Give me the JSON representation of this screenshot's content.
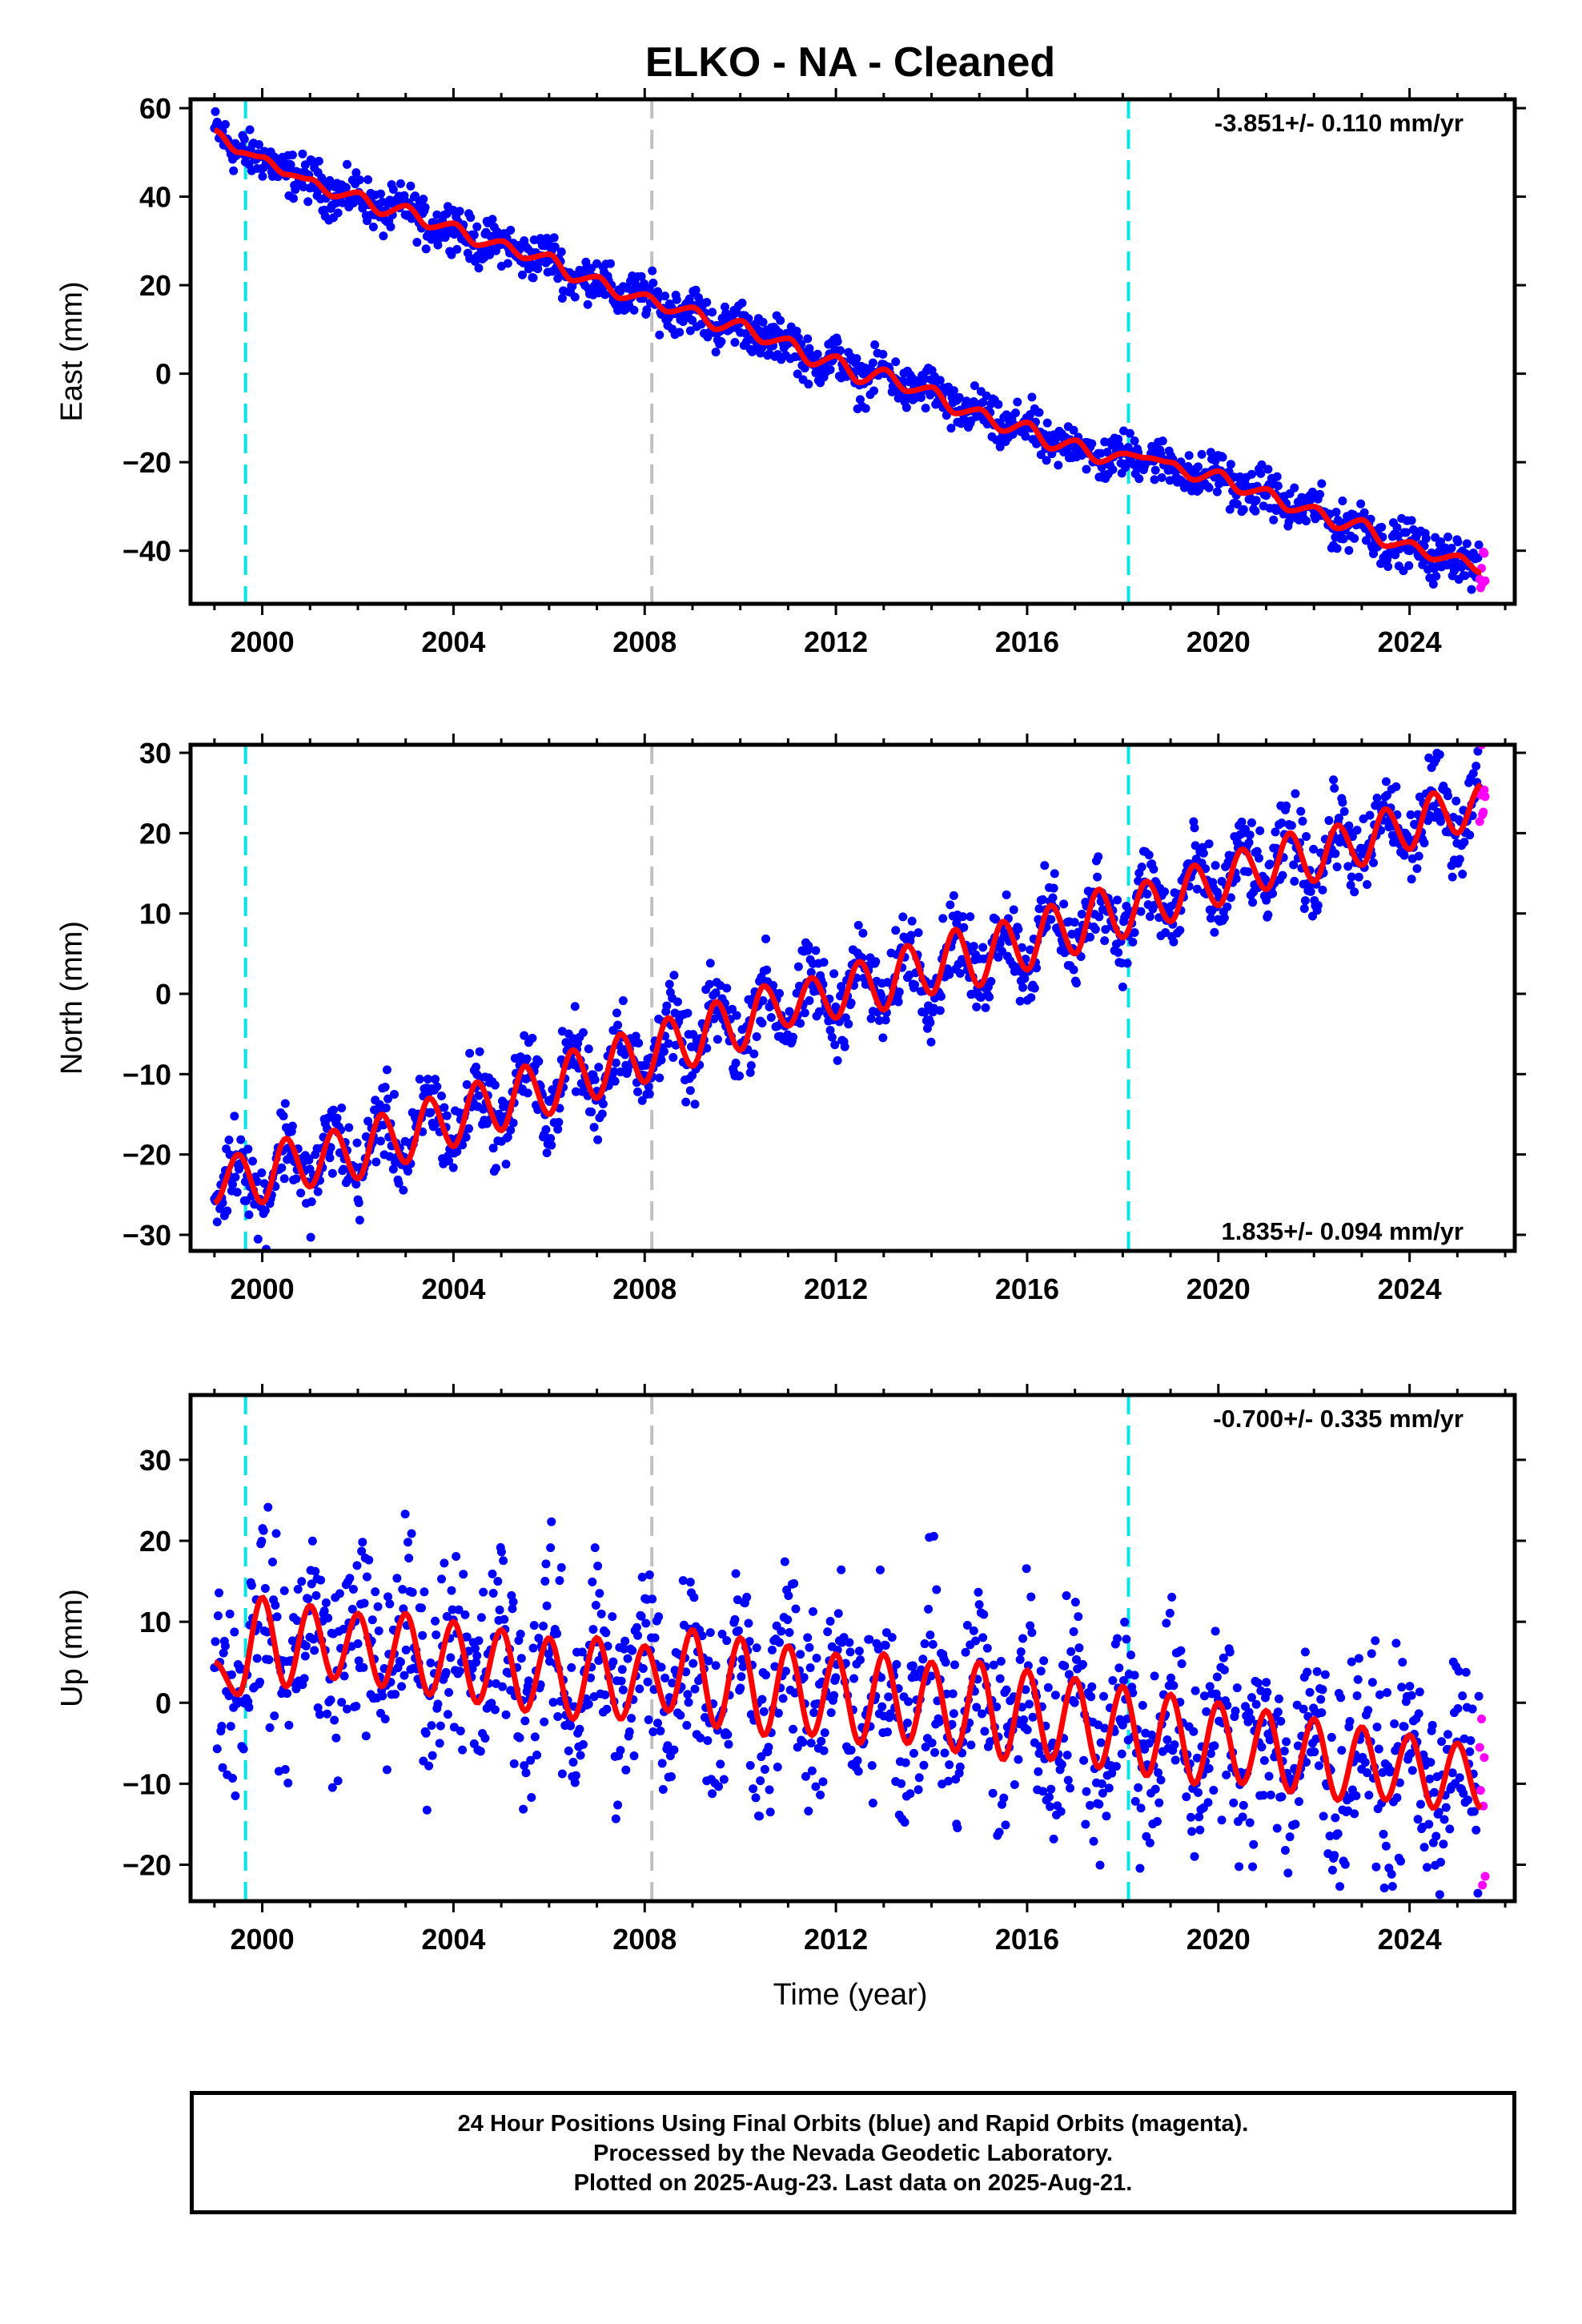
{
  "title": "ELKO  - NA - Cleaned",
  "xlabel": "Time (year)",
  "footer": {
    "line1": "24 Hour Positions Using Final Orbits (blue) and Rapid Orbits (magenta).",
    "line2": "Processed by the Nevada Geodetic Laboratory.",
    "line3": "Plotted on 2025-Aug-23. Last data on 2025-Aug-21."
  },
  "colors": {
    "final": "#0000ff",
    "rapid": "#ff00ff",
    "model": "#ff0000",
    "antenna_change": "#00e5e5",
    "equipment_change": "#c0c0c0"
  },
  "chart_data": [
    {
      "type": "scatter",
      "panel": "east",
      "ylabel": "East (mm)",
      "rate": "-3.851+/- 0.110 mm/yr",
      "rate_position": "top-right",
      "xlim": [
        1998.5,
        2026.2
      ],
      "ylim": [
        -52,
        62
      ],
      "xticks": [
        2000,
        2004,
        2008,
        2012,
        2016,
        2020,
        2024
      ],
      "yticks": [
        -40,
        -20,
        0,
        20,
        40,
        60
      ],
      "vlines": [
        {
          "x": 1999.65,
          "kind": "antenna_change"
        },
        {
          "x": 2008.15,
          "kind": "equipment_change"
        },
        {
          "x": 2018.12,
          "kind": "antenna_change"
        }
      ],
      "x": [
        1999.0,
        1999.5,
        2000.0,
        2000.5,
        2001.0,
        2001.5,
        2002.0,
        2002.5,
        2003.0,
        2003.5,
        2004.0,
        2004.5,
        2005.0,
        2005.5,
        2006.0,
        2006.5,
        2007.0,
        2007.5,
        2008.0,
        2008.5,
        2009.0,
        2009.5,
        2010.0,
        2010.5,
        2011.0,
        2011.5,
        2012.0,
        2012.5,
        2013.0,
        2013.5,
        2014.0,
        2014.5,
        2015.0,
        2015.5,
        2016.0,
        2016.5,
        2017.0,
        2017.5,
        2018.0,
        2018.5,
        2019.0,
        2019.5,
        2020.0,
        2020.5,
        2021.0,
        2021.5,
        2022.0,
        2022.5,
        2023.0,
        2023.5,
        2024.0,
        2024.5,
        2025.0,
        2025.5
      ],
      "y": [
        55,
        50,
        49,
        45,
        44,
        40,
        41,
        36,
        38,
        33,
        34,
        29,
        30,
        26,
        27,
        21,
        22,
        17,
        18,
        14,
        15,
        10,
        12,
        7,
        8,
        2,
        4,
        -2,
        1,
        -4,
        -3,
        -9,
        -8,
        -13,
        -11,
        -17,
        -15,
        -20,
        -18,
        -19,
        -20,
        -24,
        -22,
        -27,
        -26,
        -31,
        -30,
        -35,
        -33,
        -39,
        -38,
        -42,
        -41,
        -45
      ],
      "spread": 2.5
    },
    {
      "type": "scatter",
      "panel": "north",
      "ylabel": "North (mm)",
      "rate": "1.835+/- 0.094 mm/yr",
      "rate_position": "bottom-right",
      "xlim": [
        1998.5,
        2026.2
      ],
      "ylim": [
        -32,
        31
      ],
      "xticks": [
        2000,
        2004,
        2008,
        2012,
        2016,
        2020,
        2024
      ],
      "yticks": [
        -30,
        -20,
        -10,
        0,
        10,
        20,
        30
      ],
      "vlines": [
        {
          "x": 1999.65,
          "kind": "antenna_change"
        },
        {
          "x": 2008.15,
          "kind": "equipment_change"
        },
        {
          "x": 2018.12,
          "kind": "antenna_change"
        }
      ],
      "x": [
        1999.0,
        1999.5,
        2000.0,
        2000.5,
        2001.0,
        2001.5,
        2002.0,
        2002.5,
        2003.0,
        2003.5,
        2004.0,
        2004.5,
        2005.0,
        2005.5,
        2006.0,
        2006.5,
        2007.0,
        2007.5,
        2008.0,
        2008.5,
        2009.0,
        2009.5,
        2010.0,
        2010.5,
        2011.0,
        2011.5,
        2012.0,
        2012.5,
        2013.0,
        2013.5,
        2014.0,
        2014.5,
        2015.0,
        2015.5,
        2016.0,
        2016.5,
        2017.0,
        2017.5,
        2018.0,
        2018.5,
        2019.0,
        2019.5,
        2020.0,
        2020.5,
        2021.0,
        2021.5,
        2022.0,
        2022.5,
        2023.0,
        2023.5,
        2024.0,
        2024.5,
        2025.0,
        2025.5
      ],
      "y": [
        -26,
        -20,
        -26,
        -18,
        -24,
        -17,
        -23,
        -15,
        -21,
        -13,
        -19,
        -11,
        -17,
        -9,
        -15,
        -7,
        -13,
        -5,
        -11,
        -3,
        -9,
        -1,
        -7,
        1,
        -4,
        2,
        -3,
        4,
        -2,
        6,
        0,
        8,
        1,
        9,
        3,
        11,
        5,
        13,
        7,
        14,
        9,
        16,
        11,
        18,
        13,
        20,
        14,
        21,
        16,
        23,
        18,
        25,
        20,
        26
      ],
      "spread": 2.5
    },
    {
      "type": "scatter",
      "panel": "up",
      "ylabel": "Up (mm)",
      "rate": "-0.700+/- 0.335 mm/yr",
      "rate_position": "top-right",
      "xlim": [
        1998.5,
        2026.2
      ],
      "ylim": [
        -24.5,
        38
      ],
      "xticks": [
        2000,
        2004,
        2008,
        2012,
        2016,
        2020,
        2024
      ],
      "yticks": [
        -20,
        -10,
        0,
        10,
        20,
        30
      ],
      "vlines": [
        {
          "x": 1999.65,
          "kind": "antenna_change"
        },
        {
          "x": 2008.15,
          "kind": "equipment_change"
        },
        {
          "x": 2018.12,
          "kind": "antenna_change"
        }
      ],
      "x": [
        1999.0,
        1999.5,
        2000.0,
        2000.5,
        2001.0,
        2001.5,
        2002.0,
        2002.5,
        2003.0,
        2003.5,
        2004.0,
        2004.5,
        2005.0,
        2005.5,
        2006.0,
        2006.5,
        2007.0,
        2007.5,
        2008.0,
        2008.5,
        2009.0,
        2009.5,
        2010.0,
        2010.5,
        2011.0,
        2011.5,
        2012.0,
        2012.5,
        2013.0,
        2013.5,
        2014.0,
        2014.5,
        2015.0,
        2015.5,
        2016.0,
        2016.5,
        2017.0,
        2017.5,
        2018.0,
        2018.5,
        2019.0,
        2019.5,
        2020.0,
        2020.5,
        2021.0,
        2021.5,
        2022.0,
        2022.5,
        2023.0,
        2023.5,
        2024.0,
        2024.5,
        2025.0,
        2025.5
      ],
      "y": [
        5,
        1,
        13,
        2,
        12,
        3,
        11,
        2,
        11,
        1,
        10,
        0,
        9,
        -1,
        8,
        -2,
        8,
        -2,
        7,
        -1,
        9,
        -3,
        8,
        -4,
        7,
        -4,
        6,
        -5,
        6,
        -5,
        5,
        -6,
        5,
        -7,
        4,
        -7,
        3,
        -8,
        2,
        -9,
        1,
        -10,
        0,
        -10,
        -1,
        -11,
        -2,
        -12,
        -3,
        -12,
        -4,
        -13,
        -5,
        -13
      ],
      "spread": 6
    }
  ]
}
